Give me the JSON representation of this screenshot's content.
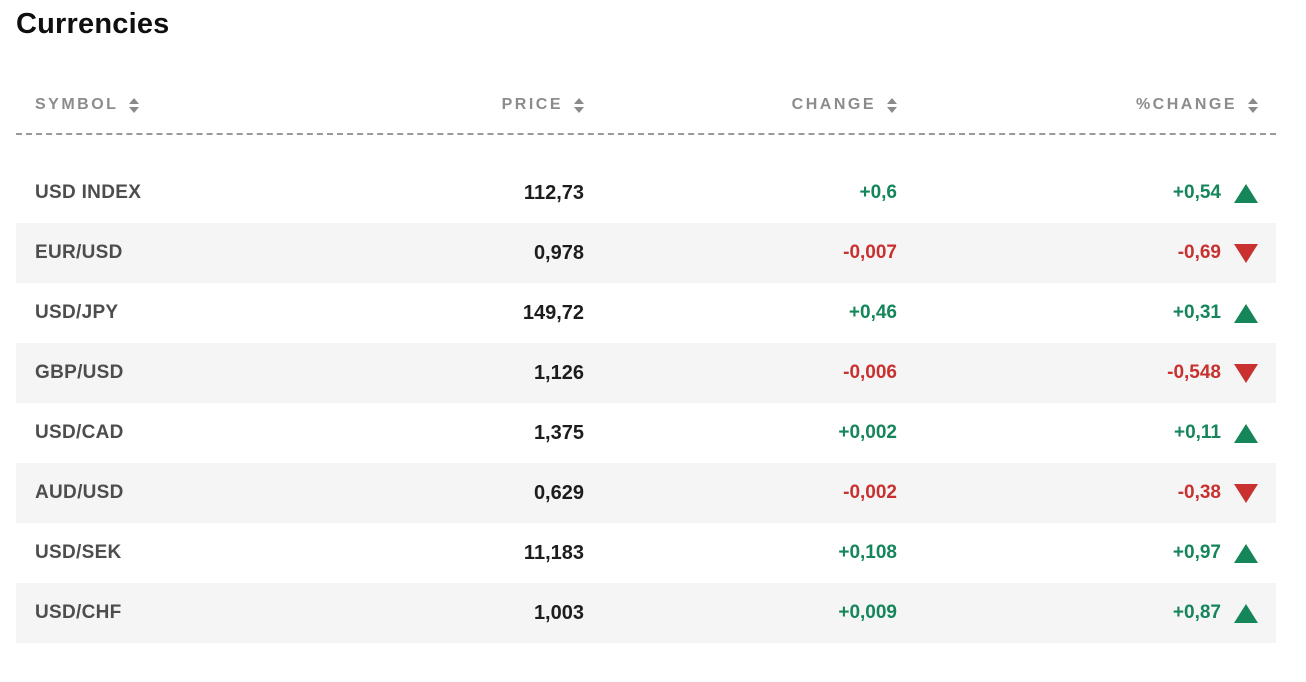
{
  "page": {
    "title": "Currencies"
  },
  "colors": {
    "positive": "#15855a",
    "negative": "#c8312f",
    "header_text": "#8c8c8c",
    "symbol_text": "#4d4d4d",
    "value_text": "#1d1d1f",
    "alt_row_bg": "#f5f5f6",
    "divider": "#9a9a9a",
    "background": "#ffffff"
  },
  "table": {
    "columns": [
      {
        "label": "SYMBOL",
        "sort_icon": "sort-arrows-icon"
      },
      {
        "label": "PRICE",
        "sort_icon": "sort-arrows-icon"
      },
      {
        "label": "CHANGE",
        "sort_icon": "sort-arrows-icon"
      },
      {
        "label": "%CHANGE",
        "sort_icon": "sort-arrows-icon"
      }
    ],
    "rows": [
      {
        "symbol": "USD INDEX",
        "price": "112,73",
        "change": "+0,6",
        "pct_change": "+0,54",
        "direction": "up",
        "trend_icon": "triangle-up-icon"
      },
      {
        "symbol": "EUR/USD",
        "price": "0,978",
        "change": "-0,007",
        "pct_change": "-0,69",
        "direction": "down",
        "trend_icon": "triangle-down-icon"
      },
      {
        "symbol": "USD/JPY",
        "price": "149,72",
        "change": "+0,46",
        "pct_change": "+0,31",
        "direction": "up",
        "trend_icon": "triangle-up-icon"
      },
      {
        "symbol": "GBP/USD",
        "price": "1,126",
        "change": "-0,006",
        "pct_change": "-0,548",
        "direction": "down",
        "trend_icon": "triangle-down-icon"
      },
      {
        "symbol": "USD/CAD",
        "price": "1,375",
        "change": "+0,002",
        "pct_change": "+0,11",
        "direction": "up",
        "trend_icon": "triangle-up-icon"
      },
      {
        "symbol": "AUD/USD",
        "price": "0,629",
        "change": "-0,002",
        "pct_change": "-0,38",
        "direction": "down",
        "trend_icon": "triangle-down-icon"
      },
      {
        "symbol": "USD/SEK",
        "price": "11,183",
        "change": "+0,108",
        "pct_change": "+0,97",
        "direction": "up",
        "trend_icon": "triangle-up-icon"
      },
      {
        "symbol": "USD/CHF",
        "price": "1,003",
        "change": "+0,009",
        "pct_change": "+0,87",
        "direction": "up",
        "trend_icon": "triangle-up-icon"
      }
    ]
  }
}
